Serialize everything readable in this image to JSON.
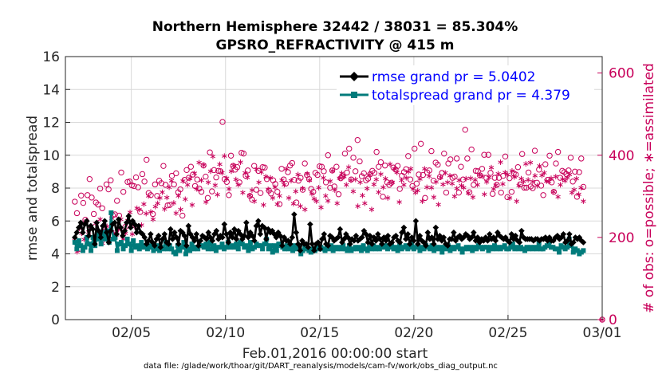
{
  "chart": {
    "title_line1": "Northern Hemisphere 32442 / 38031 = 85.304%",
    "title_line2": "GPSRO_REFRACTIVITY @ 415 m",
    "xlabel": "Feb.01,2016 00:00:00 start",
    "ylabel_left": "rmse and totalspread",
    "ylabel_right": "# of obs: o=possible; ∗=assimilated",
    "footnote": "data file: /glade/work/thoar/git/DART_reanalysis/models/cam-fv/work/obs_diag_output.nc",
    "legend": [
      {
        "label": "rmse grand pr = 5.0402"
      },
      {
        "label": "totalspread grand pr = 4.379"
      }
    ],
    "x_ticks": [
      "02/05",
      "02/10",
      "02/15",
      "02/20",
      "02/25",
      "03/01"
    ],
    "y_ticks_left": [
      "0",
      "2",
      "4",
      "6",
      "8",
      "10",
      "12",
      "14",
      "16"
    ],
    "y_ticks_right": [
      "0",
      "200",
      "400",
      "600"
    ]
  },
  "chart_data": {
    "type": "line",
    "x_unit": "days since Feb.01,2016 00:00:00",
    "xlim": [
      0.5,
      29
    ],
    "ylim_left": [
      0,
      16
    ],
    "ylim_right": [
      0,
      640
    ],
    "grid": true,
    "legend_position": "top-right",
    "colors": {
      "rmse": "#000000",
      "totalspread": "#007b7b",
      "obs_count": "#c8005a"
    },
    "rmse": [
      5.0,
      5.3,
      5.6,
      5.9,
      5.3,
      5.8,
      6.0,
      5.1,
      5.7,
      5.5,
      4.6,
      5.9,
      5.4,
      5.0,
      5.7,
      6.0,
      5.3,
      4.7,
      5.4,
      5.8,
      5.9,
      5.2,
      6.1,
      5.6,
      5.1,
      5.4,
      5.9,
      6.3,
      5.6,
      6.0,
      5.8,
      5.3,
      5.7,
      5.3,
      5.2,
      5.0,
      4.6,
      4.8,
      5.2,
      4.7,
      4.5,
      4.9,
      5.1,
      4.4,
      4.9,
      5.2,
      4.7,
      4.6,
      5.5,
      4.9,
      5.3,
      5.0,
      4.6,
      5.4,
      5.3,
      5.1,
      4.5,
      5.7,
      5.2,
      5.0,
      4.8,
      5.2,
      4.5,
      4.8,
      5.1,
      5.0,
      4.9,
      5.3,
      5.0,
      4.8,
      5.2,
      5.4,
      4.9,
      5.1,
      5.0,
      5.8,
      5.2,
      4.7,
      5.3,
      5.0,
      5.5,
      4.9,
      5.4,
      5.2,
      4.9,
      5.1,
      5.9,
      5.0,
      5.3,
      5.1,
      4.8,
      5.7,
      6.0,
      5.2,
      5.7,
      5.6,
      4.9,
      5.5,
      5.3,
      5.4,
      5.2,
      5.0,
      5.3,
      5.1,
      4.5,
      5.0,
      4.8,
      4.8,
      4.6,
      5.0,
      6.4,
      5.3,
      4.6,
      4.2,
      4.8,
      4.6,
      4.6,
      4.4,
      5.8,
      4.6,
      4.2,
      4.6,
      4.7,
      4.3,
      4.9,
      5.2,
      4.6,
      4.5,
      5.1,
      5.0,
      4.8,
      4.9,
      5.0,
      5.5,
      4.7,
      4.9,
      5.2,
      5.0,
      4.6,
      4.9,
      4.8,
      5.1,
      4.8,
      4.9,
      5.0,
      5.4,
      5.2,
      4.7,
      5.1,
      4.6,
      5.0,
      4.8,
      5.2,
      4.9,
      4.6,
      5.0,
      4.8,
      5.1,
      4.6,
      4.7,
      5.0,
      5.1,
      4.8,
      4.7,
      5.3,
      5.6,
      4.9,
      5.2,
      4.6,
      5.0,
      4.8,
      6.0,
      4.6,
      5.1,
      4.8,
      4.7,
      4.5,
      5.3,
      4.9,
      5.0,
      4.6,
      5.6,
      4.9,
      5.1,
      4.8,
      5.0,
      4.6,
      4.5,
      4.9,
      4.9,
      5.3,
      4.8,
      5.0,
      5.1,
      4.9,
      5.0,
      5.2,
      5.1,
      4.9,
      5.0,
      5.3,
      4.8,
      5.0,
      4.7,
      4.9,
      4.8,
      5.0,
      4.8,
      5.2,
      4.9,
      5.0,
      4.8,
      5.3,
      5.1,
      5.0,
      4.9,
      5.0,
      4.8,
      4.7,
      5.2,
      4.9,
      5.1,
      4.8,
      4.7,
      5.4,
      5.0,
      4.9,
      4.9,
      4.9,
      4.9,
      4.8,
      4.9,
      4.9,
      4.8,
      4.9,
      4.9,
      5.0,
      4.8,
      5.0,
      4.8,
      4.8,
      5.0,
      5.1,
      4.9,
      5.0,
      5.2,
      4.7,
      4.8,
      5.2,
      4.6,
      4.7,
      5.0,
      4.9,
      5.0,
      4.8,
      4.7
    ],
    "totalspread": [
      4.7,
      4.3,
      4.8,
      4.5,
      4.2,
      4.4,
      5.0,
      4.6,
      4.2,
      5.0,
      4.5,
      4.9,
      5.2,
      4.6,
      5.3,
      4.9,
      5.4,
      4.7,
      6.5,
      4.9,
      5.0,
      4.2,
      4.6,
      4.7,
      4.3,
      4.5,
      4.9,
      4.6,
      4.2,
      4.8,
      4.4,
      4.5,
      4.3,
      4.7,
      4.4,
      4.5,
      4.3,
      4.5,
      4.4,
      4.2,
      4.3,
      4.5,
      4.2,
      4.4,
      4.3,
      4.7,
      4.3,
      4.5,
      4.3,
      4.1,
      4.0,
      4.5,
      4.2,
      4.4,
      4.7,
      4.0,
      4.3,
      4.2,
      4.6,
      4.3,
      4.4,
      4.3,
      4.5,
      4.5,
      4.4,
      4.6,
      4.3,
      4.7,
      4.3,
      4.5,
      4.2,
      4.4,
      4.4,
      4.6,
      4.3,
      4.4,
      4.7,
      4.4,
      4.5,
      4.4,
      4.6,
      4.3,
      4.7,
      4.6,
      4.4,
      4.5,
      4.2,
      4.7,
      4.3,
      4.4,
      4.6,
      4.5,
      4.5,
      4.3,
      4.6,
      4.9,
      4.3,
      4.5,
      4.1,
      4.5,
      4.2,
      4.6,
      4.5,
      4.4,
      4.3,
      4.5,
      4.3,
      4.4,
      4.2,
      4.5,
      4.3,
      4.4,
      4.0,
      4.2,
      4.4,
      4.3,
      4.2,
      4.1,
      4.3,
      4.2,
      4.5,
      4.3,
      4.4,
      4.3,
      4.2,
      4.4,
      4.3,
      4.5,
      4.2,
      4.4,
      4.3,
      4.4,
      4.3,
      4.5,
      4.3,
      4.2,
      4.5,
      4.2,
      4.3,
      4.4,
      4.3,
      4.4,
      4.2,
      4.5,
      4.3,
      4.2,
      4.4,
      4.3,
      4.5,
      4.3,
      4.4,
      4.3,
      4.5,
      4.4,
      4.5,
      4.3,
      4.4,
      4.5,
      4.3,
      4.4,
      4.2,
      4.5,
      4.3,
      4.4,
      4.5,
      4.3,
      4.4,
      4.6,
      4.3,
      4.4,
      4.5,
      4.2,
      4.4,
      4.3,
      4.5,
      4.4,
      4.3,
      4.5,
      4.2,
      4.4,
      4.3,
      4.4,
      4.1,
      4.4,
      4.3,
      4.5,
      4.2,
      4.4,
      4.3,
      4.4,
      4.5,
      4.3,
      4.1,
      4.3,
      4.4,
      4.3,
      4.4,
      4.2,
      4.4,
      4.3,
      4.5,
      4.4,
      4.3,
      4.4,
      4.4,
      4.2,
      4.4,
      4.3,
      4.5,
      4.3,
      4.4,
      4.3,
      4.4,
      4.5,
      4.3,
      4.3,
      4.4,
      4.6,
      4.3,
      4.4,
      4.3,
      4.4,
      4.3,
      4.2,
      4.4,
      4.3,
      4.4,
      4.3,
      4.4,
      4.3,
      4.6,
      4.3,
      4.3,
      4.4,
      4.5,
      4.7,
      4.4,
      4.4,
      4.3,
      4.3,
      4.1,
      4.5,
      4.4,
      4.3,
      4.4,
      4.9,
      4.5,
      4.1,
      4.3,
      4.2,
      4.0,
      4.1,
      4.2
    ],
    "obs_possible": [
      287,
      259,
      172,
      302,
      284,
      243,
      303,
      342,
      297,
      257,
      285,
      280,
      319,
      271,
      223,
      329,
      317,
      339,
      254,
      256,
      289,
      253,
      358,
      311,
      226,
      335,
      336,
      327,
      325,
      346,
      322,
      262,
      354,
      336,
      389,
      308,
      303,
      257,
      329,
      301,
      338,
      332,
      374,
      328,
      278,
      279,
      350,
      329,
      356,
      310,
      317,
      253,
      340,
      364,
      345,
      372,
      353,
      325,
      341,
      319,
      311,
      375,
      348,
      296,
      407,
      312,
      364,
      346,
      362,
      361,
      481,
      342,
      335,
      303,
      399,
      374,
      365,
      371,
      334,
      406,
      404,
      350,
      363,
      301,
      292,
      374,
      316,
      362,
      308,
      371,
      370,
      342,
      314,
      307,
      339,
      330,
      311,
      281,
      367,
      341,
      331,
      359,
      375,
      381,
      340,
      285,
      338,
      345,
      316,
      380,
      352,
      342,
      318,
      311,
      357,
      352,
      373,
      372,
      361,
      334,
      400,
      321,
      363,
      324,
      372,
      305,
      344,
      349,
      404,
      358,
      416,
      341,
      394,
      361,
      437,
      385,
      349,
      356,
      339,
      343,
      354,
      362,
      357,
      408,
      372,
      383,
      299,
      375,
      334,
      328,
      333,
      370,
      365,
      374,
      318,
      350,
      359,
      366,
      398,
      341,
      325,
      416,
      331,
      353,
      428,
      352,
      296,
      358,
      363,
      410,
      338,
      382,
      377,
      347,
      357,
      404,
      309,
      380,
      390,
      345,
      348,
      392,
      309,
      372,
      341,
      462,
      392,
      310,
      414,
      328,
      362,
      361,
      351,
      367,
      401,
      345,
      401,
      357,
      306,
      345,
      328,
      345,
      309,
      350,
      397,
      298,
      344,
      311,
      356,
      353,
      371,
      329,
      403,
      321,
      321,
      358,
      324,
      320,
      411,
      333,
      365,
      326,
      303,
      378,
      340,
      399,
      334,
      311,
      380,
      408,
      345,
      362,
      359,
      354,
      363,
      394,
      336,
      360,
      299,
      359,
      392,
      323,
      0
    ],
    "obs_assimilated": [
      198,
      165,
      222,
      210,
      195,
      240,
      213,
      227,
      198,
      234,
      201,
      244,
      186,
      218,
      227,
      197,
      247,
      211,
      206,
      219,
      244,
      196,
      210,
      241,
      261,
      208,
      226,
      271,
      268,
      230,
      281,
      258,
      301,
      262,
      244,
      275,
      283,
      296,
      310,
      269,
      297,
      322,
      338,
      284,
      259,
      301,
      268,
      337,
      293,
      328,
      343,
      279,
      356,
      318,
      382,
      339,
      376,
      286,
      334,
      361,
      397,
      327,
      304,
      378,
      357,
      398,
      344,
      318,
      361,
      375,
      341,
      328,
      383,
      309,
      357,
      346,
      302,
      315,
      288,
      366,
      334,
      359,
      279,
      348,
      317,
      345,
      296,
      322,
      281,
      301,
      339,
      328,
      367,
      296,
      338,
      282,
      312,
      353,
      276,
      319,
      268,
      355,
      339,
      306,
      294,
      288,
      321,
      273,
      345,
      301,
      289,
      337,
      362,
      315,
      283,
      344,
      356,
      348,
      328,
      371,
      339,
      312,
      341,
      276,
      334,
      302,
      283,
      319,
      352,
      268,
      329,
      341,
      310,
      354,
      322,
      343,
      296,
      378,
      334,
      367,
      358,
      286,
      339,
      328,
      345,
      360,
      367,
      318,
      309,
      314,
      342,
      288,
      367,
      322,
      349,
      321,
      298,
      335,
      280,
      346,
      329,
      357,
      334,
      350,
      331,
      300,
      319,
      339,
      326,
      321,
      343,
      308,
      344,
      298,
      340,
      328,
      352,
      349,
      305,
      335,
      346,
      370,
      318,
      327,
      355,
      383,
      330,
      358,
      353,
      296,
      362,
      347,
      288,
      326,
      343,
      336,
      379,
      340,
      382,
      336,
      350,
      326,
      374,
      351,
      357,
      337,
      336,
      344,
      311,
      348,
      299,
      328,
      342,
      338,
      345,
      353,
      309,
      316,
      343,
      305,
      321,
      288,
      0
    ]
  }
}
